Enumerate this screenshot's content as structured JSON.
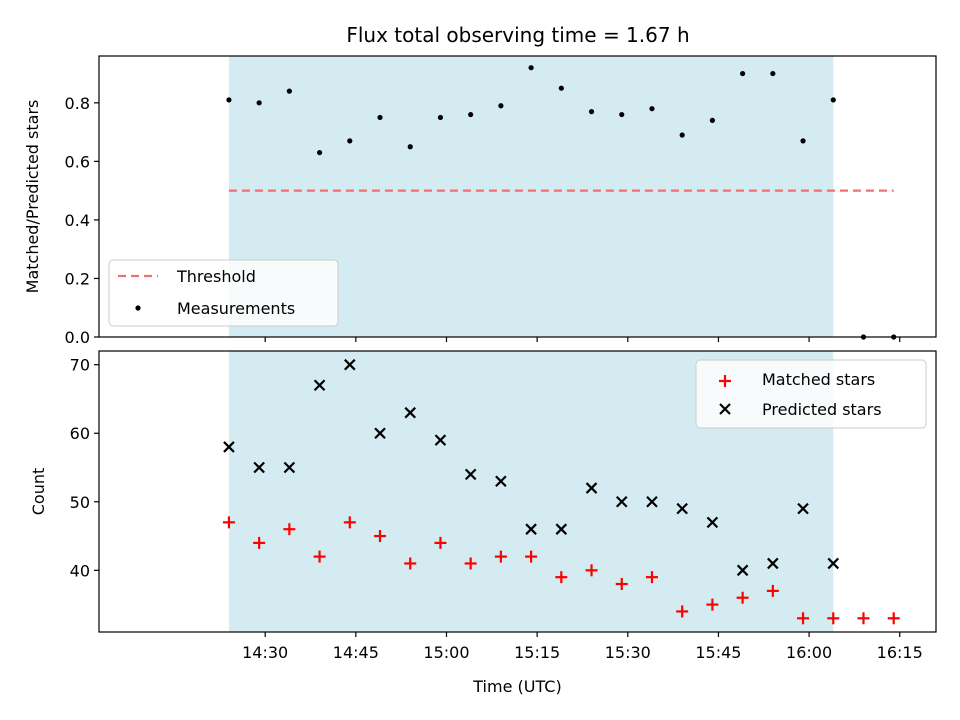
{
  "chart_data": {
    "type": "scatter",
    "title": "Flux total observing time = 1.67 h",
    "xlabel": "Time (UTC)",
    "x_ticks": [
      "14:30",
      "14:45",
      "15:00",
      "15:15",
      "15:30",
      "15:45",
      "16:00",
      "16:15"
    ],
    "x_tick_minutes": [
      30,
      45,
      60,
      75,
      90,
      105,
      120,
      135
    ],
    "xlim_minutes": [
      2.5,
      141
    ],
    "shaded_span_minutes": [
      24,
      124
    ],
    "shade_color": "#d4ebf1",
    "top": {
      "ylabel": "Matched/Predicted stars",
      "ylim": [
        0,
        0.96
      ],
      "y_ticks": [
        0.0,
        0.2,
        0.4,
        0.6,
        0.8
      ],
      "y_tick_labels": [
        "0.0",
        "0.2",
        "0.4",
        "0.6",
        "0.8"
      ],
      "threshold": {
        "name": "Threshold",
        "value": 0.5,
        "x_range": [
          24,
          134
        ],
        "color": "#f07070"
      },
      "measurements": {
        "name": "Measurements",
        "color": "#000000",
        "x": [
          24,
          29,
          34,
          39,
          44,
          49,
          54,
          59,
          64,
          69,
          74,
          79,
          84,
          89,
          94,
          99,
          104,
          109,
          114,
          119,
          124,
          129,
          134
        ],
        "y": [
          0.81,
          0.8,
          0.84,
          0.63,
          0.67,
          0.75,
          0.65,
          0.75,
          0.76,
          0.79,
          0.92,
          0.85,
          0.77,
          0.76,
          0.78,
          0.69,
          0.74,
          0.9,
          0.9,
          0.67,
          0.81,
          0.0,
          0.0
        ]
      },
      "legend": {
        "placement": "lower-left"
      }
    },
    "bottom": {
      "ylabel": "Count",
      "ylim": [
        31,
        72
      ],
      "y_ticks": [
        40,
        50,
        60,
        70
      ],
      "y_tick_labels": [
        "40",
        "50",
        "60",
        "70"
      ],
      "series": [
        {
          "name": "Matched stars",
          "marker": "plus",
          "color": "#ff0000",
          "x": [
            24,
            29,
            34,
            39,
            44,
            49,
            54,
            59,
            64,
            69,
            74,
            79,
            84,
            89,
            94,
            99,
            104,
            109,
            114,
            119,
            124,
            129,
            134
          ],
          "y": [
            47,
            44,
            46,
            42,
            47,
            45,
            41,
            44,
            41,
            42,
            42,
            39,
            40,
            38,
            39,
            34,
            35,
            36,
            37,
            33,
            33,
            33,
            33
          ]
        },
        {
          "name": "Predicted stars",
          "marker": "x",
          "color": "#000000",
          "x": [
            24,
            29,
            34,
            39,
            44,
            49,
            54,
            59,
            64,
            69,
            74,
            79,
            84,
            89,
            94,
            99,
            104,
            109,
            114,
            119,
            124
          ],
          "y": [
            58,
            55,
            55,
            67,
            70,
            60,
            63,
            59,
            54,
            53,
            46,
            46,
            52,
            50,
            50,
            49,
            47,
            40,
            41,
            49,
            41
          ]
        }
      ],
      "legend": {
        "placement": "top-right"
      }
    }
  }
}
